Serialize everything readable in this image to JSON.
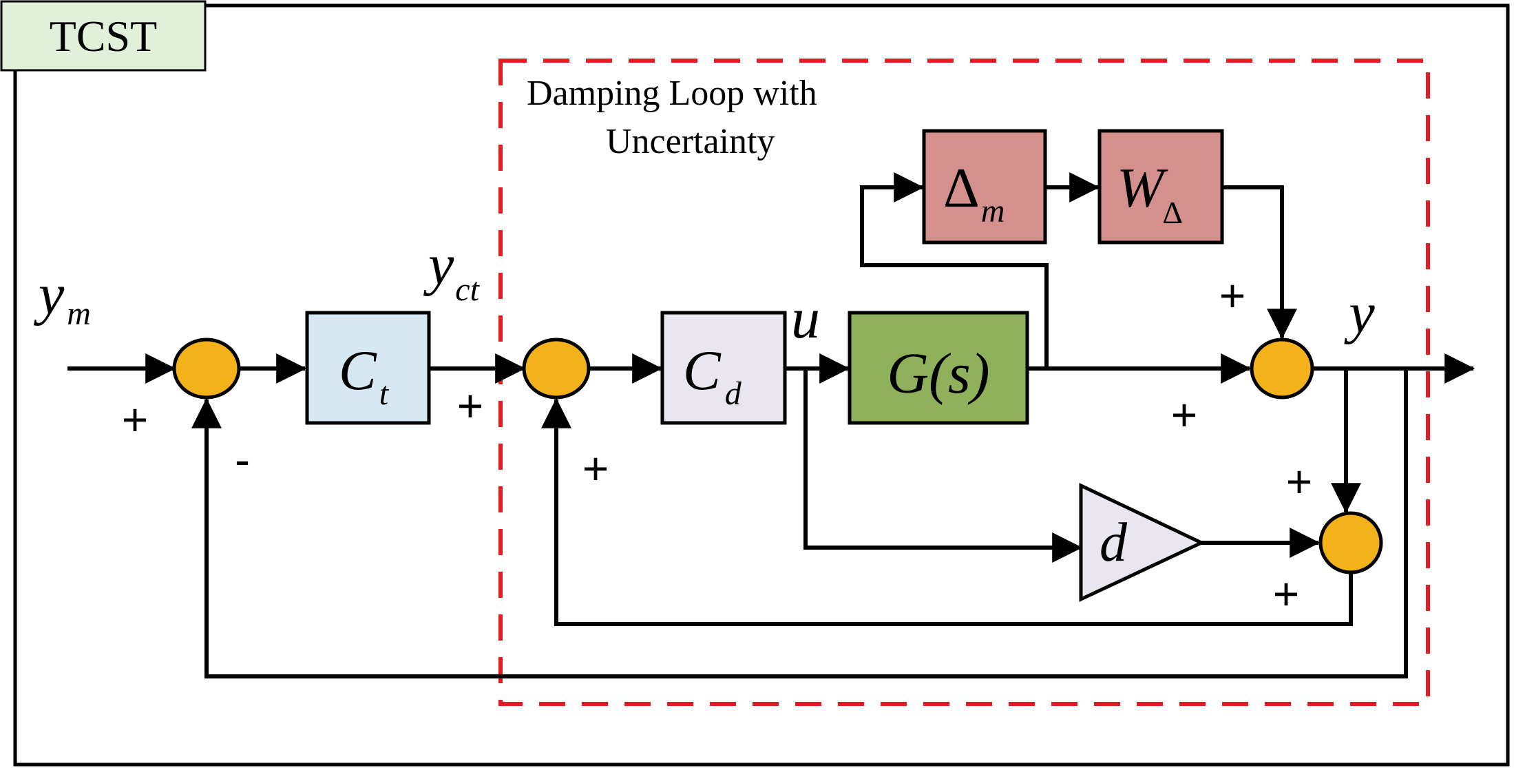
{
  "tag": {
    "label": "TCST"
  },
  "region": {
    "title_line1": "Damping Loop with",
    "title_line2": "Uncertainty"
  },
  "signals": {
    "ym_base": "y",
    "ym_sub": "m",
    "yct_base": "y",
    "yct_sub": "ct",
    "u": "u",
    "y": "y"
  },
  "blocks": {
    "ct_base": "C",
    "ct_sub": "t",
    "cd_base": "C",
    "cd_sub": "d",
    "g_label": "G(s)",
    "delta_base": "Δ",
    "delta_sub": "m",
    "w_base": "W",
    "w_sub": "Δ",
    "d_label": "d"
  },
  "signs": {
    "s1_plus": "+",
    "s1_minus": "-",
    "s2_plus_top": "+",
    "s2_plus_bottom": "+",
    "s3_plus_top": "+",
    "s3_plus_left": "+",
    "s4_plus_top": "+",
    "s4_plus_bottom": "+"
  },
  "colors": {
    "summing_junction": "#f3b21a",
    "ct_block": "#d6e8f2",
    "cd_block": "#e9e6ef",
    "g_block": "#8fb15c",
    "delta_block": "#d4908d",
    "w_block": "#d4908d",
    "d_gain": "#e9e6ef",
    "tag_fill": "#e2f0d9",
    "dashed_region": "#e31b23"
  }
}
